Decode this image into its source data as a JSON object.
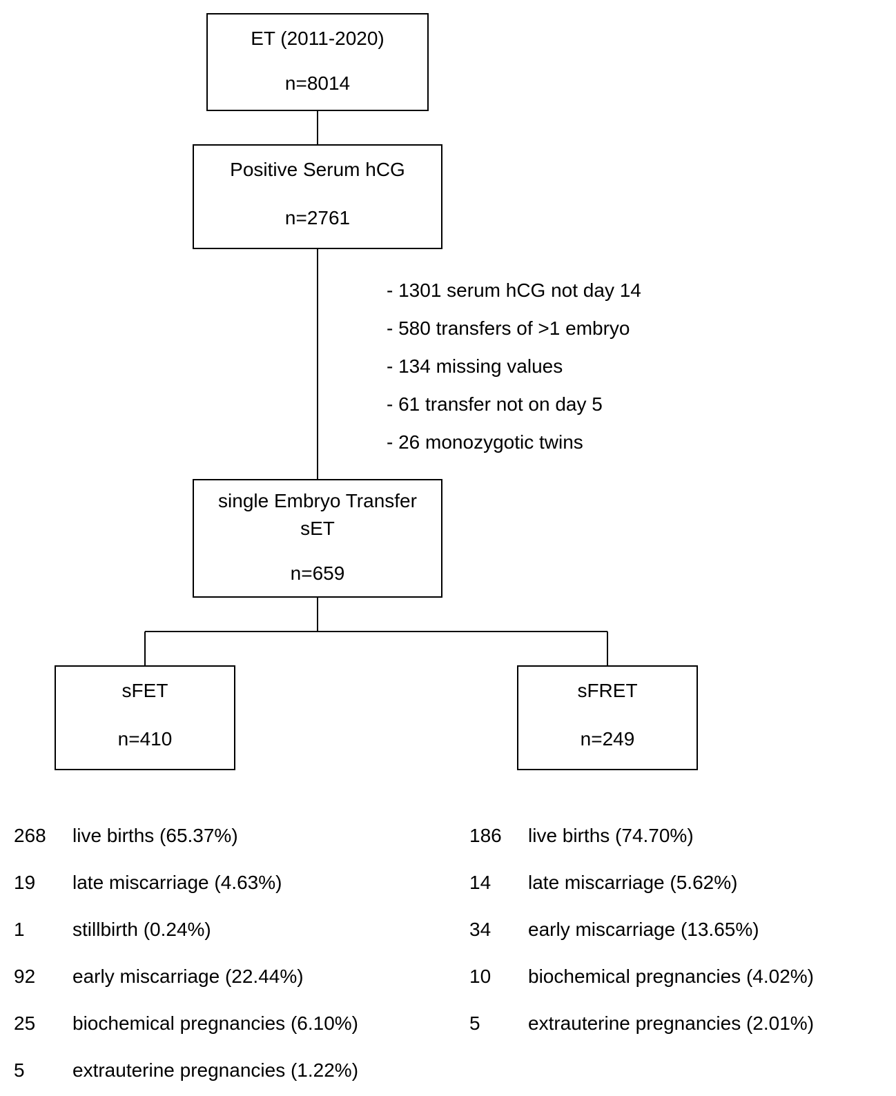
{
  "type": "flowchart",
  "background_color": "#ffffff",
  "stroke_color": "#000000",
  "stroke_width": 2,
  "font_family": "Arial, Helvetica, sans-serif",
  "font_size_box": 28,
  "font_size_list": 28,
  "nodes": {
    "et": {
      "line1": "ET (2011-2020)",
      "line2": "n=8014"
    },
    "hcg": {
      "line1": "Positive Serum hCG",
      "line2": "n=2761"
    },
    "set": {
      "line1": "single Embryo Transfer",
      "line2": "sET",
      "line3": "n=659"
    },
    "sfet": {
      "line1": "sFET",
      "line2": "n=410"
    },
    "sfret": {
      "line1": "sFRET",
      "line2": "n=249"
    }
  },
  "exclusions": [
    "- 1301 serum hCG not day 14",
    "- 580 transfers of >1 embryo",
    "- 134 missing values",
    "- 61 transfer not on day 5",
    "- 26 monozygotic twins"
  ],
  "sfet_outcomes": [
    {
      "n": "268",
      "label": "live births (65.37%)"
    },
    {
      "n": "19",
      "label": "late miscarriage (4.63%)"
    },
    {
      "n": "1",
      "label": "stillbirth (0.24%)"
    },
    {
      "n": "92",
      "label": "early miscarriage (22.44%)"
    },
    {
      "n": "25",
      "label": "biochemical pregnancies (6.10%)"
    },
    {
      "n": "5",
      "label": "extrauterine pregnancies (1.22%)"
    }
  ],
  "sfret_outcomes": [
    {
      "n": "186",
      "label": "live births (74.70%)"
    },
    {
      "n": "14",
      "label": "late miscarriage (5.62%)"
    },
    {
      "n": "34",
      "label": "early miscarriage (13.65%)"
    },
    {
      "n": "10",
      "label": "biochemical pregnancies (4.02%)"
    },
    {
      "n": "5",
      "label": "extrauterine pregnancies (2.01%)"
    }
  ]
}
